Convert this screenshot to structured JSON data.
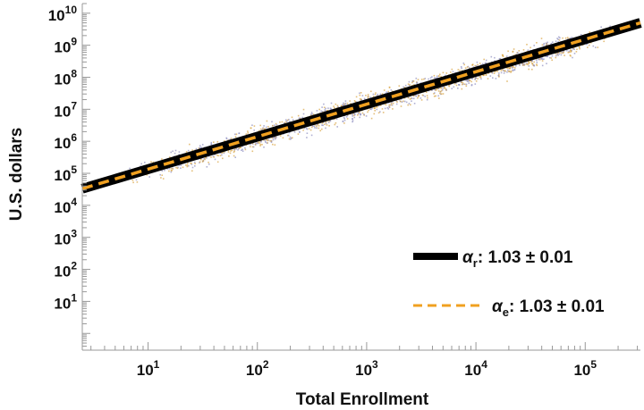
{
  "chart_data": {
    "type": "scatter",
    "x_scale": "log",
    "y_scale": "log",
    "xlabel": "Total Enrollment",
    "ylabel": "U.S. dollars",
    "xlim": [
      2.5,
      320000
    ],
    "ylim": [
      0.3,
      20000000000
    ],
    "x_ticks": [
      {
        "base": "10",
        "exp": "1",
        "value": 10
      },
      {
        "base": "10",
        "exp": "2",
        "value": 100
      },
      {
        "base": "10",
        "exp": "3",
        "value": 1000
      },
      {
        "base": "10",
        "exp": "4",
        "value": 10000
      },
      {
        "base": "10",
        "exp": "5",
        "value": 100000
      }
    ],
    "y_ticks": [
      {
        "base": "10",
        "exp": "1",
        "value": 10
      },
      {
        "base": "10",
        "exp": "2",
        "value": 100
      },
      {
        "base": "10",
        "exp": "3",
        "value": 1000
      },
      {
        "base": "10",
        "exp": "4",
        "value": 10000
      },
      {
        "base": "10",
        "exp": "5",
        "value": 100000
      },
      {
        "base": "10",
        "exp": "6",
        "value": 1000000
      },
      {
        "base": "10",
        "exp": "7",
        "value": 10000000
      },
      {
        "base": "10",
        "exp": "8",
        "value": 100000000
      },
      {
        "base": "10",
        "exp": "9",
        "value": 1000000000
      },
      {
        "base": "10",
        "exp": "10",
        "value": 10000000000
      }
    ],
    "fit_lines": [
      {
        "label_symbol": "α",
        "label_sub": "r",
        "label_value": ": 1.03 ± 0.01",
        "color": "#000000",
        "style": "solid",
        "x": [
          2.5,
          320000
        ],
        "y": [
          33000,
          5000000000
        ]
      },
      {
        "label_symbol": "α",
        "label_sub": "e",
        "label_value": ": 1.03 ± 0.01",
        "color": "#f0a020",
        "style": "dashed",
        "x": [
          2.5,
          320000
        ],
        "y": [
          33000,
          5000000000
        ]
      }
    ],
    "scatter_series": [
      {
        "color": "#d9a441"
      },
      {
        "color": "#8f8fc0"
      }
    ],
    "legend_position": "bottom-right",
    "grid": false
  }
}
